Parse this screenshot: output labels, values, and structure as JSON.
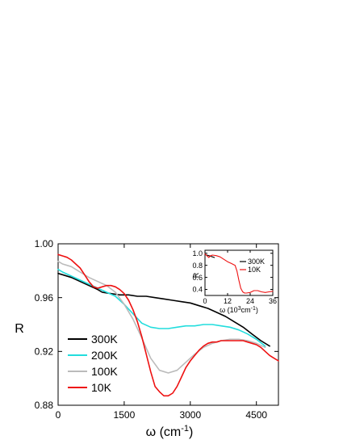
{
  "chart_data": [
    {
      "type": "line",
      "title": "",
      "xlabel": "ω (cm",
      "xlabel_sup": "-1",
      "xlabel_close": ")",
      "ylabel": "R",
      "xlim": [
        0,
        5000
      ],
      "ylim": [
        0.88,
        1.0
      ],
      "xticks": [
        0,
        1500,
        3000,
        4500
      ],
      "xtick_labels": [
        "0",
        "1500",
        "3000",
        "4500"
      ],
      "yticks": [
        0.88,
        0.92,
        0.96,
        1.0
      ],
      "ytick_labels": [
        "0.88",
        "0.92",
        "0.96",
        "1.00"
      ],
      "grid": false,
      "legend": "bottom-left",
      "series": [
        {
          "name": "300K",
          "color": "#000000",
          "x": [
            0,
            100,
            300,
            500,
            700,
            900,
            1000,
            1200,
            1400,
            1600,
            1800,
            2000,
            2200,
            2400,
            2600,
            2800,
            3000,
            3200,
            3400,
            3600,
            3800,
            4000,
            4200,
            4400,
            4600,
            4800
          ],
          "y": [
            0.978,
            0.977,
            0.975,
            0.972,
            0.969,
            0.966,
            0.964,
            0.963,
            0.962,
            0.962,
            0.961,
            0.961,
            0.96,
            0.959,
            0.958,
            0.957,
            0.956,
            0.954,
            0.952,
            0.949,
            0.946,
            0.942,
            0.938,
            0.933,
            0.928,
            0.924
          ]
        },
        {
          "name": "200K",
          "color": "#22dddd",
          "x": [
            0,
            100,
            300,
            500,
            700,
            900,
            1100,
            1300,
            1500,
            1700,
            1900,
            2100,
            2300,
            2500,
            2700,
            2900,
            3100,
            3300,
            3500,
            3700,
            3900,
            4100,
            4300,
            4500,
            4700
          ],
          "y": [
            0.981,
            0.979,
            0.976,
            0.973,
            0.97,
            0.967,
            0.964,
            0.961,
            0.955,
            0.948,
            0.941,
            0.938,
            0.937,
            0.937,
            0.938,
            0.939,
            0.939,
            0.94,
            0.94,
            0.939,
            0.938,
            0.936,
            0.933,
            0.929,
            0.924
          ]
        },
        {
          "name": "100K",
          "color": "#bbbbbb",
          "x": [
            0,
            100,
            300,
            500,
            700,
            900,
            1100,
            1300,
            1500,
            1700,
            1900,
            2100,
            2300,
            2500,
            2700,
            2900,
            3100,
            3300,
            3500,
            3700,
            3900,
            4100,
            4300,
            4500,
            4700
          ],
          "y": [
            0.987,
            0.985,
            0.983,
            0.979,
            0.975,
            0.972,
            0.969,
            0.964,
            0.955,
            0.944,
            0.93,
            0.915,
            0.906,
            0.904,
            0.906,
            0.912,
            0.918,
            0.923,
            0.926,
            0.928,
            0.929,
            0.929,
            0.928,
            0.926,
            0.923
          ]
        },
        {
          "name": "10K",
          "color": "#ee1111",
          "x": [
            0,
            100,
            200,
            300,
            400,
            500,
            600,
            700,
            800,
            900,
            1000,
            1100,
            1200,
            1300,
            1400,
            1500,
            1600,
            1700,
            1800,
            1900,
            2000,
            2100,
            2200,
            2300,
            2400,
            2500,
            2600,
            2700,
            2800,
            2900,
            3000,
            3100,
            3200,
            3300,
            3400,
            3500,
            3600,
            3700,
            3800,
            3900,
            4000,
            4100,
            4200,
            4300,
            4400,
            4500,
            4600,
            4700,
            4800,
            4900,
            5000
          ],
          "y": [
            0.992,
            0.991,
            0.99,
            0.988,
            0.985,
            0.982,
            0.977,
            0.972,
            0.968,
            0.967,
            0.968,
            0.969,
            0.969,
            0.968,
            0.966,
            0.963,
            0.958,
            0.951,
            0.942,
            0.931,
            0.918,
            0.905,
            0.894,
            0.89,
            0.887,
            0.887,
            0.889,
            0.894,
            0.901,
            0.908,
            0.913,
            0.917,
            0.921,
            0.924,
            0.926,
            0.927,
            0.927,
            0.928,
            0.928,
            0.928,
            0.928,
            0.928,
            0.928,
            0.927,
            0.926,
            0.925,
            0.923,
            0.92,
            0.917,
            0.915,
            0.913
          ]
        }
      ]
    },
    {
      "type": "line",
      "title": "",
      "xlabel": "ω (10",
      "xlabel_sup": "3",
      "xlabel_close": "cm",
      "xlabel_sup2": "-1",
      "xlabel_end": ")",
      "ylabel": "R",
      "xlim": [
        0,
        36
      ],
      "ylim": [
        0.3,
        1.05
      ],
      "xticks": [
        0,
        12,
        24,
        36
      ],
      "xtick_labels": [
        "0",
        "12",
        "24",
        "36"
      ],
      "yticks": [
        0.4,
        0.6,
        0.8,
        1.0
      ],
      "ytick_labels": [
        "0.4",
        "0.6",
        "0.8",
        "1.0"
      ],
      "legend": "top-right",
      "series": [
        {
          "name": "300K",
          "color": "#000000",
          "x": [
            0,
            1,
            2,
            3,
            4,
            5
          ],
          "y": [
            0.98,
            0.97,
            0.96,
            0.95,
            0.94,
            0.93
          ]
        },
        {
          "name": "10K",
          "color": "#ee1111",
          "x": [
            0,
            1,
            2,
            3,
            4,
            6,
            8,
            10,
            12,
            14,
            16,
            17,
            18,
            19,
            20,
            21,
            22,
            24,
            26,
            28,
            30,
            32,
            34,
            36
          ],
          "y": [
            0.99,
            0.96,
            0.93,
            0.96,
            0.97,
            0.96,
            0.94,
            0.9,
            0.86,
            0.83,
            0.8,
            0.7,
            0.55,
            0.42,
            0.36,
            0.34,
            0.34,
            0.35,
            0.38,
            0.38,
            0.36,
            0.35,
            0.36,
            0.37
          ]
        }
      ]
    }
  ]
}
